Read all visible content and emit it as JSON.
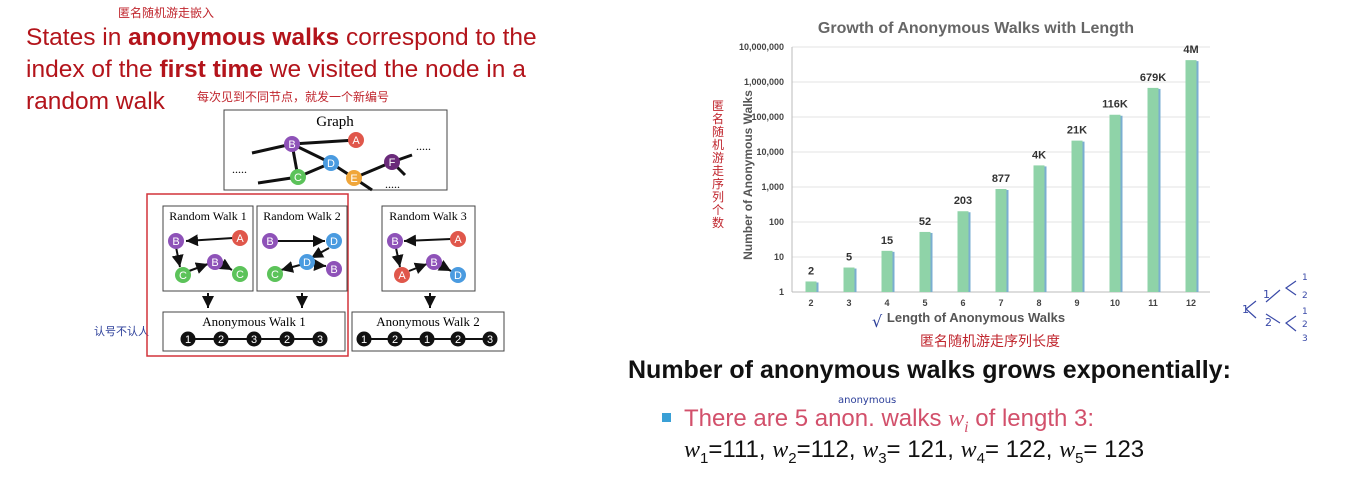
{
  "annotations": {
    "heading_note": "匿名随机游走嵌入",
    "random_walk_note": "每次见到不同节点，就发一个新编号",
    "anon_walk_note": "认号不认人",
    "y_axis_note": "匿名随机游走序列个数",
    "x_axis_note": "匿名随机游走序列长度",
    "check_mark": "√",
    "anonymous_word": "anonymous",
    "tree_root": "1",
    "tree_mid_1": "1",
    "tree_mid_2": "2",
    "tree_leaves": [
      "1",
      "2",
      "1",
      "2",
      "3"
    ]
  },
  "heading": {
    "part1": "States in ",
    "bold1": "anonymous walks",
    "part2": " correspond to the index of the ",
    "bold2": "first time",
    "part3": " we visited the node in a random walk"
  },
  "diagram": {
    "graph_title": "Graph",
    "ellipsis": ".....",
    "graph_nodes": [
      {
        "label": "A",
        "color": "#e0574b"
      },
      {
        "label": "B",
        "color": "#8e52b8"
      },
      {
        "label": "C",
        "color": "#5cc35a"
      },
      {
        "label": "D",
        "color": "#4a9be0"
      },
      {
        "label": "E",
        "color": "#f0a63a"
      },
      {
        "label": "F",
        "color": "#6a2a7a"
      }
    ],
    "random_walk_1": "Random Walk 1",
    "random_walk_2": "Random Walk 2",
    "random_walk_3": "Random Walk 3",
    "anonymous_walk_1": "Anonymous Walk 1",
    "anonymous_walk_2": "Anonymous Walk 2",
    "seq_1": [
      "1",
      "2",
      "3",
      "2",
      "3"
    ],
    "seq_2": [
      "1",
      "2",
      "1",
      "2",
      "3"
    ]
  },
  "chart_data": {
    "type": "bar",
    "title": "Growth of Anonymous Walks with Length",
    "xlabel": "Length of Anonymous Walks",
    "ylabel": "Number of Anonymous Walks",
    "y_scale": "log",
    "ylim": [
      1,
      10000000
    ],
    "y_ticks": [
      "1",
      "10",
      "100",
      "1,000",
      "10,000",
      "100,000",
      "1,000,000",
      "10,000,000"
    ],
    "categories": [
      "2",
      "3",
      "4",
      "5",
      "6",
      "7",
      "8",
      "9",
      "10",
      "11",
      "12"
    ],
    "values": [
      2,
      5,
      15,
      52,
      203,
      877,
      4140,
      21147,
      115975,
      678570,
      4213597
    ],
    "data_labels": [
      "2",
      "5",
      "15",
      "52",
      "203",
      "877",
      "4K",
      "21K",
      "116K",
      "679K",
      "4M"
    ],
    "bar_color": "#8fd3a8",
    "grid": true
  },
  "subtitle": "Number of anonymous walks grows exponentially:",
  "bullet": {
    "text1": "There are 5 anon. walks ",
    "var": "w",
    "sub": "i",
    "text2": " of length 3:"
  },
  "walks": [
    {
      "sub": "1",
      "value": "111"
    },
    {
      "sub": "2",
      "value": "112"
    },
    {
      "sub": "3",
      "value": "121"
    },
    {
      "sub": "4",
      "value": "122"
    },
    {
      "sub": "5",
      "value": "123"
    }
  ]
}
